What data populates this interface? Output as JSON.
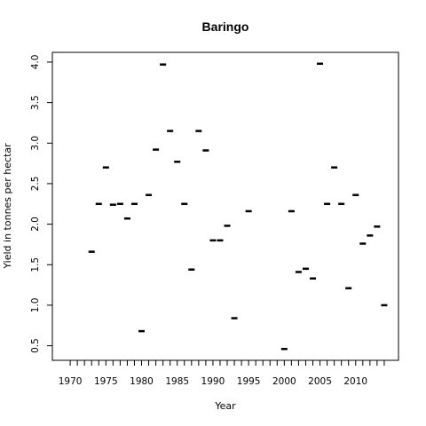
{
  "chart_data": {
    "type": "scatter",
    "title": "Baringo",
    "xlabel": "Year",
    "ylabel": "Yield in tonnes per hectar",
    "xlim": [
      1967.5,
      2016
    ],
    "ylim": [
      0.32,
      4.12
    ],
    "x_ticks": [
      1970,
      1975,
      1980,
      1985,
      1990,
      1995,
      2000,
      2005,
      2010
    ],
    "x_minor_ticks": [
      1970,
      1971,
      1972,
      1973,
      1974,
      1975,
      1976,
      1977,
      1978,
      1979,
      1980,
      1981,
      1982,
      1983,
      1984,
      1985,
      1986,
      1987,
      1988,
      1989,
      1990,
      1991,
      1992,
      1993,
      1994,
      1995,
      1996,
      1997,
      1998,
      1999,
      2000,
      2001,
      2002,
      2003,
      2004,
      2005,
      2006,
      2007,
      2008,
      2009,
      2010,
      2011,
      2012,
      2013,
      2014
    ],
    "y_ticks": [
      "0.5",
      "1.0",
      "1.5",
      "2.0",
      "2.5",
      "3.0",
      "3.5",
      "4.0"
    ],
    "grid": false,
    "marker": "dash",
    "color": "#000000",
    "points": [
      {
        "x": 1973,
        "y": 1.66
      },
      {
        "x": 1974,
        "y": 2.25
      },
      {
        "x": 1975,
        "y": 2.7
      },
      {
        "x": 1976,
        "y": 2.24
      },
      {
        "x": 1977,
        "y": 2.25
      },
      {
        "x": 1978,
        "y": 2.07
      },
      {
        "x": 1979,
        "y": 2.25
      },
      {
        "x": 1980,
        "y": 0.68
      },
      {
        "x": 1981,
        "y": 2.36
      },
      {
        "x": 1982,
        "y": 2.92
      },
      {
        "x": 1983,
        "y": 3.97
      },
      {
        "x": 1984,
        "y": 3.15
      },
      {
        "x": 1985,
        "y": 2.77
      },
      {
        "x": 1986,
        "y": 2.25
      },
      {
        "x": 1987,
        "y": 1.44
      },
      {
        "x": 1988,
        "y": 3.15
      },
      {
        "x": 1989,
        "y": 2.91
      },
      {
        "x": 1990,
        "y": 1.8
      },
      {
        "x": 1991,
        "y": 1.8
      },
      {
        "x": 1992,
        "y": 1.98
      },
      {
        "x": 1993,
        "y": 0.84
      },
      {
        "x": 1995,
        "y": 2.16
      },
      {
        "x": 2000,
        "y": 0.46
      },
      {
        "x": 2001,
        "y": 2.16
      },
      {
        "x": 2002,
        "y": 1.41
      },
      {
        "x": 2003,
        "y": 1.45
      },
      {
        "x": 2004,
        "y": 1.33
      },
      {
        "x": 2005,
        "y": 3.98
      },
      {
        "x": 2006,
        "y": 2.25
      },
      {
        "x": 2007,
        "y": 2.7
      },
      {
        "x": 2008,
        "y": 2.25
      },
      {
        "x": 2009,
        "y": 1.21
      },
      {
        "x": 2010,
        "y": 2.36
      },
      {
        "x": 2011,
        "y": 1.76
      },
      {
        "x": 2012,
        "y": 1.86
      },
      {
        "x": 2013,
        "y": 1.97
      },
      {
        "x": 2014,
        "y": 1.0
      }
    ]
  }
}
